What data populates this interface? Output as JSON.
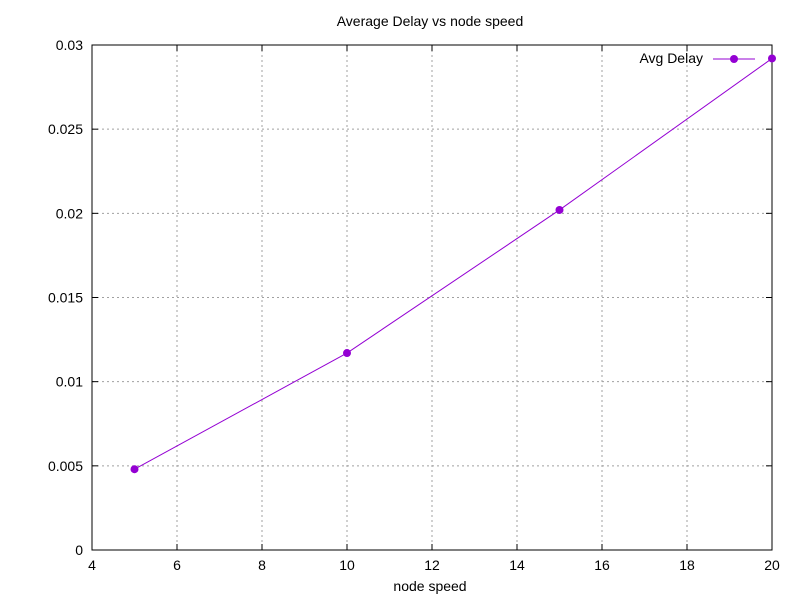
{
  "chart_data": {
    "type": "line",
    "title": "Average Delay vs node speed",
    "xlabel": "node speed",
    "ylabel": "",
    "xlim": [
      4,
      20
    ],
    "ylim": [
      0,
      0.03
    ],
    "xticks": [
      "4",
      "6",
      "8",
      "10",
      "12",
      "14",
      "16",
      "18",
      "20"
    ],
    "yticks": [
      "0",
      "0.005",
      "0.01",
      "0.015",
      "0.02",
      "0.025",
      "0.03"
    ],
    "grid": true,
    "legend_position": "top-right",
    "series": [
      {
        "name": "Avg Delay",
        "color": "#9400d3",
        "x": [
          5,
          10,
          15,
          20
        ],
        "y": [
          0.0048,
          0.0117,
          0.0202,
          0.0292
        ]
      }
    ]
  }
}
